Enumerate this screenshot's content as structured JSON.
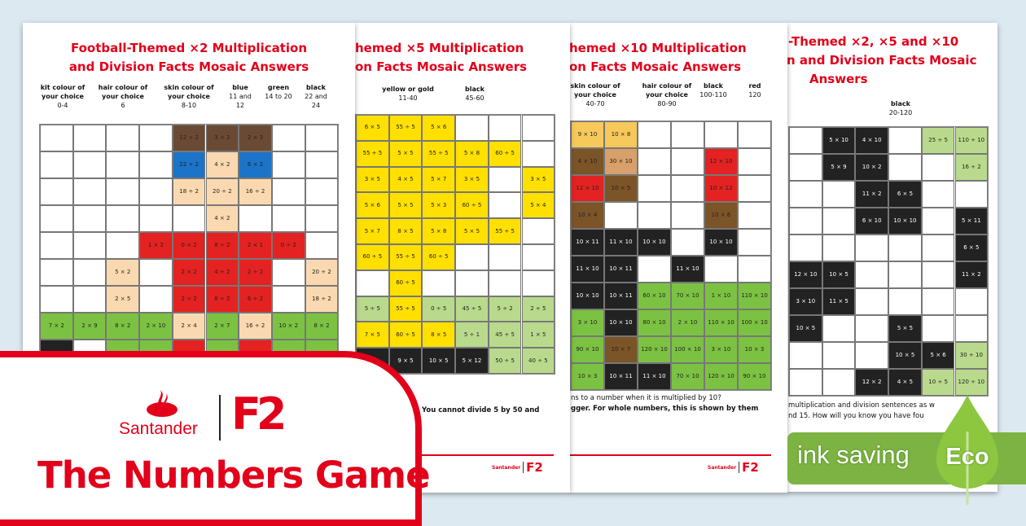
{
  "colors": {
    "W": "#ffffff",
    "B": "#6b4a34",
    "L": "#1c74c9",
    "S": "#fbd9b0",
    "R": "#e42222",
    "G": "#7cc242",
    "K": "#222222",
    "Y": "#ffe000",
    "P": "#b9da8c",
    "T": "#f7c85a",
    "O": "#d8a06a",
    "D": "#7b5428",
    "accent": "#e2001a",
    "eco": "#7cb342"
  },
  "sheet1": {
    "title_line1": "Football-Themed ×2 Multiplication",
    "title_line2_a": "and Division Facts Mosaic ",
    "title_line2_b": "Answers",
    "headers": [
      {
        "label": "kit colour of your choice",
        "range": "0-4"
      },
      {
        "label": "hair colour of your choice",
        "range": "6"
      },
      {
        "label": "skin colour of your choice",
        "range": "8-10"
      },
      {
        "label": "blue",
        "range": "11 and 12"
      },
      {
        "label": "green",
        "range": "14 to 20"
      },
      {
        "label": "black",
        "range": "22 and 24"
      }
    ],
    "grid": [
      [
        [
          "",
          "W"
        ],
        [
          "",
          "W"
        ],
        [
          "",
          "W"
        ],
        [
          "",
          "W"
        ],
        [
          "12 ÷ 2",
          "B"
        ],
        [
          "3 × 2",
          "B"
        ],
        [
          "2 × 3",
          "B"
        ],
        [
          "",
          "W"
        ],
        [
          "",
          "W"
        ]
      ],
      [
        [
          "",
          "W"
        ],
        [
          "",
          "W"
        ],
        [
          "",
          "W"
        ],
        [
          "",
          "W"
        ],
        [
          "22 ÷ 2",
          "L"
        ],
        [
          "4 × 2",
          "S"
        ],
        [
          "6 × 2",
          "L"
        ],
        [
          "",
          "W"
        ],
        [
          "",
          "W"
        ]
      ],
      [
        [
          "",
          "W"
        ],
        [
          "",
          "W"
        ],
        [
          "",
          "W"
        ],
        [
          "",
          "W"
        ],
        [
          "18 ÷ 2",
          "S"
        ],
        [
          "20 ÷ 2",
          "S"
        ],
        [
          "16 ÷ 2",
          "S"
        ],
        [
          "",
          "W"
        ],
        [
          "",
          "W"
        ]
      ],
      [
        [
          "",
          "W"
        ],
        [
          "",
          "W"
        ],
        [
          "",
          "W"
        ],
        [
          "",
          "W"
        ],
        [
          "",
          "W"
        ],
        [
          "4 × 2",
          "S"
        ],
        [
          "",
          "W"
        ],
        [
          "",
          "W"
        ],
        [
          "",
          "W"
        ]
      ],
      [
        [
          "",
          "W"
        ],
        [
          "",
          "W"
        ],
        [
          "",
          "W"
        ],
        [
          "1 × 2",
          "R"
        ],
        [
          "0 × 2",
          "R"
        ],
        [
          "8 ÷ 2",
          "R"
        ],
        [
          "2 × 1",
          "R"
        ],
        [
          "0 ÷ 2",
          "R"
        ],
        [
          "",
          "W"
        ]
      ],
      [
        [
          "",
          "W"
        ],
        [
          "",
          "W"
        ],
        [
          "5 × 2",
          "S"
        ],
        [
          "",
          "W"
        ],
        [
          "2 × 2",
          "R"
        ],
        [
          "4 ÷ 2",
          "R"
        ],
        [
          "2 ÷ 2",
          "R"
        ],
        [
          "",
          "W"
        ],
        [
          "20 ÷ 2",
          "S"
        ]
      ],
      [
        [
          "",
          "W"
        ],
        [
          "",
          "W"
        ],
        [
          "2 × 5",
          "S"
        ],
        [
          "",
          "W"
        ],
        [
          "2 ÷ 2",
          "R"
        ],
        [
          "8 ÷ 2",
          "R"
        ],
        [
          "6 ÷ 2",
          "R"
        ],
        [
          "",
          "W"
        ],
        [
          "18 ÷ 2",
          "S"
        ]
      ],
      [
        [
          "7 × 2",
          "G"
        ],
        [
          "2 × 9",
          "G"
        ],
        [
          "8 × 2",
          "G"
        ],
        [
          "2 × 10",
          "G"
        ],
        [
          "2 × 4",
          "S"
        ],
        [
          "2 × 7",
          "G"
        ],
        [
          "16 ÷ 2",
          "S"
        ],
        [
          "10 × 2",
          "G"
        ],
        [
          "8 × 2",
          "G"
        ]
      ],
      [
        [
          "",
          "K"
        ],
        [
          "",
          "W"
        ],
        [
          "",
          "G"
        ],
        [
          "",
          "G"
        ],
        [
          "",
          "R"
        ],
        [
          "",
          "G"
        ],
        [
          "",
          "R"
        ],
        [
          "",
          "G"
        ],
        [
          "",
          "G"
        ]
      ]
    ]
  },
  "sheet2": {
    "title_line1": "hemed ×5 Multiplication",
    "title_line2_a": "on Facts Mosaic ",
    "title_line2_b": "Answers",
    "headers": [
      {
        "label": "yellow or gold",
        "range": "11-40"
      },
      {
        "label": "black",
        "range": "45-60"
      }
    ],
    "grid": [
      [
        [
          "6 × 5",
          "Y"
        ],
        [
          "55 ÷ 5",
          "Y"
        ],
        [
          "5 × 6",
          "Y"
        ],
        [
          "",
          "W"
        ],
        [
          "",
          "W"
        ],
        [
          "",
          "W"
        ]
      ],
      [
        [
          "55 ÷ 5",
          "Y"
        ],
        [
          "5 × 5",
          "Y"
        ],
        [
          "55 ÷ 5",
          "Y"
        ],
        [
          "5 × 8",
          "Y"
        ],
        [
          "60 ÷ 5",
          "Y"
        ],
        [
          "",
          "W"
        ]
      ],
      [
        [
          "3 × 5",
          "Y"
        ],
        [
          "4 × 5",
          "Y"
        ],
        [
          "5 × 7",
          "Y"
        ],
        [
          "3 × 5",
          "Y"
        ],
        [
          "",
          "W"
        ],
        [
          "3 × 5",
          "Y"
        ]
      ],
      [
        [
          "5 × 6",
          "Y"
        ],
        [
          "5 × 5",
          "Y"
        ],
        [
          "5 × 3",
          "Y"
        ],
        [
          "60 ÷ 5",
          "Y"
        ],
        [
          "",
          "W"
        ],
        [
          "5 × 4",
          "Y"
        ]
      ],
      [
        [
          "5 × 7",
          "Y"
        ],
        [
          "8 × 5",
          "Y"
        ],
        [
          "5 × 8",
          "Y"
        ],
        [
          "5 × 5",
          "Y"
        ],
        [
          "55 ÷ 5",
          "Y"
        ],
        [
          "",
          "W"
        ]
      ],
      [
        [
          "60 ÷ 5",
          "Y"
        ],
        [
          "55 ÷ 5",
          "Y"
        ],
        [
          "60 ÷ 5",
          "Y"
        ],
        [
          "",
          "W"
        ],
        [
          "",
          "W"
        ],
        [
          "",
          "W"
        ]
      ],
      [
        [
          "",
          "W"
        ],
        [
          "60 ÷ 5",
          "Y"
        ],
        [
          "",
          "W"
        ],
        [
          "",
          "W"
        ],
        [
          "",
          "W"
        ],
        [
          "",
          "W"
        ]
      ],
      [
        [
          "5 ÷ 5",
          "P"
        ],
        [
          "55 ÷ 5",
          "Y"
        ],
        [
          "0 ÷ 5",
          "P"
        ],
        [
          "45 ÷ 5",
          "P"
        ],
        [
          "5 ÷ 2",
          "P"
        ],
        [
          "2 ÷ 5",
          "P"
        ]
      ],
      [
        [
          "7 × 5",
          "Y"
        ],
        [
          "60 ÷ 5",
          "Y"
        ],
        [
          "8 × 5",
          "Y"
        ],
        [
          "5 ÷ 1",
          "P"
        ],
        [
          "45 ÷ 5",
          "P"
        ],
        [
          "1 × 5",
          "P"
        ]
      ],
      [
        [
          "",
          "K"
        ],
        [
          "9 × 5",
          "K"
        ],
        [
          "10 × 5",
          "K"
        ],
        [
          "5 × 12",
          "K"
        ],
        [
          "50 ÷ 5",
          "P"
        ],
        [
          "40 ÷ 5",
          "P"
        ]
      ]
    ],
    "footer_text": "You cannot divide 5 by 50 and",
    "footer_logo": "Santander"
  },
  "sheet3": {
    "title_line1": "hemed ×10 Multiplication",
    "title_line2_a": "on Facts Mosaic ",
    "title_line2_b": "Answers",
    "headers": [
      {
        "label": "skin colour of your choice",
        "range": "40-70"
      },
      {
        "label": "hair colour of your choice",
        "range": "80-90"
      },
      {
        "label": "black",
        "range": "100-110"
      },
      {
        "label": "red",
        "range": "120"
      }
    ],
    "grid": [
      [
        [
          "9 × 10",
          "T"
        ],
        [
          "10 × 8",
          "T"
        ],
        [
          "",
          "W"
        ],
        [
          "",
          "W"
        ],
        [
          "",
          "W"
        ],
        [
          "",
          "W"
        ]
      ],
      [
        [
          "4 × 10",
          "D"
        ],
        [
          "30 × 10",
          "O"
        ],
        [
          "",
          "W"
        ],
        [
          "",
          "W"
        ],
        [
          "12 × 10",
          "R"
        ],
        [
          "",
          "W"
        ]
      ],
      [
        [
          "12 × 10",
          "R"
        ],
        [
          "10 × 5",
          "D"
        ],
        [
          "",
          "W"
        ],
        [
          "",
          "W"
        ],
        [
          "10 × 12",
          "R"
        ],
        [
          "",
          "W"
        ]
      ],
      [
        [
          "10 × 4",
          "D"
        ],
        [
          "",
          "W"
        ],
        [
          "",
          "W"
        ],
        [
          "",
          "W"
        ],
        [
          "10 × 6",
          "D"
        ],
        [
          "",
          "W"
        ]
      ],
      [
        [
          "10 × 11",
          "K"
        ],
        [
          "11 × 10",
          "K"
        ],
        [
          "10 × 10",
          "K"
        ],
        [
          "",
          "W"
        ],
        [
          "10 × 10",
          "K"
        ],
        [
          "",
          "W"
        ]
      ],
      [
        [
          "11 × 10",
          "K"
        ],
        [
          "10 × 11",
          "K"
        ],
        [
          "",
          "W"
        ],
        [
          "11 × 10",
          "K"
        ],
        [
          "",
          "W"
        ],
        [
          "",
          "W"
        ]
      ],
      [
        [
          "10 × 10",
          "K"
        ],
        [
          "10 × 11",
          "K"
        ],
        [
          "60 × 10",
          "G"
        ],
        [
          "70 × 10",
          "G"
        ],
        [
          "1 × 10",
          "G"
        ],
        [
          "110 × 10",
          "G"
        ]
      ],
      [
        [
          "3 × 10",
          "G"
        ],
        [
          "10 × 10",
          "K"
        ],
        [
          "80 × 10",
          "G"
        ],
        [
          "2 × 10",
          "G"
        ],
        [
          "110 × 10",
          "G"
        ],
        [
          "100 × 10",
          "G"
        ]
      ],
      [
        [
          "90 × 10",
          "G"
        ],
        [
          "10 × 7",
          "D"
        ],
        [
          "120 × 10",
          "G"
        ],
        [
          "100 × 10",
          "G"
        ],
        [
          "3 × 10",
          "G"
        ],
        [
          "10 × 3",
          "G"
        ]
      ],
      [
        [
          "10 × 3",
          "G"
        ],
        [
          "10 × 11",
          "K"
        ],
        [
          "11 × 10",
          "K"
        ],
        [
          "70 × 10",
          "G"
        ],
        [
          "120 × 10",
          "G"
        ],
        [
          "90 × 10",
          "G"
        ]
      ]
    ],
    "footer_line1": "ns to a number when it is multiplied by 10?",
    "footer_line2": "gger. For whole numbers, this is shown by them",
    "footer_logo": "Santander"
  },
  "sheet4": {
    "title_line1": "-Themed ×2, ×5 and ×10",
    "title_line2": "n and Division Facts Mosaic",
    "title_line3": "Answers",
    "headers": [
      {
        "label": "black",
        "range": "20-120"
      }
    ],
    "grid": [
      [
        [
          "",
          "W"
        ],
        [
          "5 × 10",
          "K"
        ],
        [
          "4 × 10",
          "K"
        ],
        [
          "",
          "W"
        ],
        [
          "25 ÷ 5",
          "P"
        ],
        [
          "110 ÷ 10",
          "P"
        ]
      ],
      [
        [
          "",
          "W"
        ],
        [
          "5 × 9",
          "K"
        ],
        [
          "10 × 2",
          "K"
        ],
        [
          "",
          "W"
        ],
        [
          "",
          "W"
        ],
        [
          "16 ÷ 2",
          "P"
        ]
      ],
      [
        [
          "",
          "W"
        ],
        [
          "",
          "W"
        ],
        [
          "11 × 2",
          "K"
        ],
        [
          "6 × 5",
          "K"
        ],
        [
          "",
          "W"
        ],
        [
          "",
          "W"
        ]
      ],
      [
        [
          "",
          "W"
        ],
        [
          "",
          "W"
        ],
        [
          "6 × 10",
          "K"
        ],
        [
          "10 × 10",
          "K"
        ],
        [
          "",
          "W"
        ],
        [
          "5 × 11",
          "K"
        ]
      ],
      [
        [
          "",
          "W"
        ],
        [
          "",
          "W"
        ],
        [
          "",
          "W"
        ],
        [
          "",
          "W"
        ],
        [
          "",
          "W"
        ],
        [
          "6 × 5",
          "K"
        ]
      ],
      [
        [
          "12 × 10",
          "K"
        ],
        [
          "10 × 5",
          "K"
        ],
        [
          "",
          "W"
        ],
        [
          "",
          "W"
        ],
        [
          "",
          "W"
        ],
        [
          "11 × 2",
          "K"
        ]
      ],
      [
        [
          "3 × 10",
          "K"
        ],
        [
          "11 × 5",
          "K"
        ],
        [
          "",
          "W"
        ],
        [
          "",
          "W"
        ],
        [
          "",
          "W"
        ],
        [
          "",
          "W"
        ]
      ],
      [
        [
          "10 × 5",
          "K"
        ],
        [
          "",
          "W"
        ],
        [
          "",
          "W"
        ],
        [
          "5 × 5",
          "K"
        ],
        [
          "",
          "W"
        ],
        [
          "",
          "W"
        ]
      ],
      [
        [
          "",
          "W"
        ],
        [
          "",
          "W"
        ],
        [
          "",
          "W"
        ],
        [
          "10 × 5",
          "K"
        ],
        [
          "5 × 6",
          "K"
        ],
        [
          "30 ÷ 10",
          "P"
        ]
      ],
      [
        [
          "",
          "W"
        ],
        [
          "",
          "W"
        ],
        [
          "12 × 2",
          "K"
        ],
        [
          "4 × 5",
          "K"
        ],
        [
          "10 ÷ 5",
          "P"
        ],
        [
          "120 ÷ 10",
          "P"
        ]
      ]
    ],
    "footer_line1": "multiplication and division sentences as w",
    "footer_line2": "nd 15. How will you know you have fou"
  },
  "banner": {
    "brand": "Santander",
    "partner_logo": "F2",
    "title": "The Numbers Game"
  },
  "eco_badge": {
    "label": "ink saving",
    "leaf_label": "Eco",
    "icon": "leaf-icon"
  }
}
